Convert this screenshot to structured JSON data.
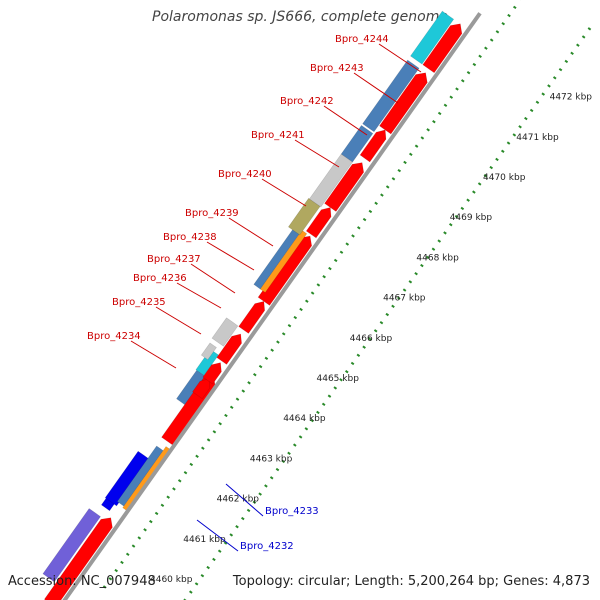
{
  "title": "Polaromonas sp. JS666, complete genome",
  "footer": {
    "accession": "Accession: NC_007948",
    "summary": "Topology: circular; Length: 5,200,264 bp; Genes: 4,873"
  },
  "colors": {
    "backbone": "#9a9a9a",
    "dots": "#2a8a2a",
    "red": "#ff0000",
    "grey": "#c8c8c8",
    "steel": "#4a7fb8",
    "cyan": "#1ec8d8",
    "olive": "#b0a860",
    "orange": "#ff9a1a",
    "blue": "#0000ee",
    "purple": "#7060d8",
    "label_red": "#cc0000",
    "label_blue": "#0000cc",
    "tick_text": "#222222"
  },
  "scale_ticks": [
    "4460 kbp",
    "4461 kbp",
    "4462 kbp",
    "4463 kbp",
    "4464 kbp",
    "4465 kbp",
    "4466 kbp",
    "4467 kbp",
    "4468 kbp",
    "4469 kbp",
    "4470 kbp",
    "4471 kbp",
    "4472 kbp"
  ],
  "gene_labels": [
    {
      "name": "Bpro_4244",
      "color": "red"
    },
    {
      "name": "Bpro_4243",
      "color": "red"
    },
    {
      "name": "Bpro_4242",
      "color": "red"
    },
    {
      "name": "Bpro_4241",
      "color": "red"
    },
    {
      "name": "Bpro_4240",
      "color": "red"
    },
    {
      "name": "Bpro_4239",
      "color": "red"
    },
    {
      "name": "Bpro_4238",
      "color": "red"
    },
    {
      "name": "Bpro_4237",
      "color": "red"
    },
    {
      "name": "Bpro_4236",
      "color": "red"
    },
    {
      "name": "Bpro_4235",
      "color": "red"
    },
    {
      "name": "Bpro_4234",
      "color": "red"
    },
    {
      "name": "Bpro_4233",
      "color": "blue"
    },
    {
      "name": "Bpro_4232",
      "color": "blue"
    }
  ]
}
